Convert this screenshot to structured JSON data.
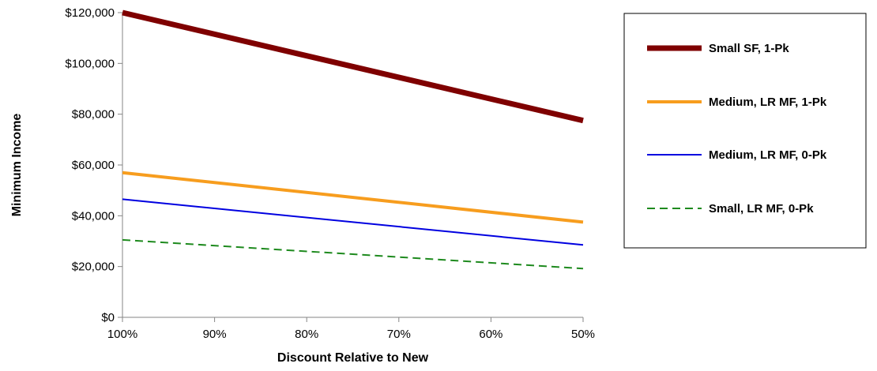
{
  "chart_data": {
    "type": "line",
    "x": [
      "100%",
      "50%"
    ],
    "x_tick_labels": [
      "100%",
      "90%",
      "80%",
      "70%",
      "60%",
      "50%"
    ],
    "xlabel": "Discount Relative to New",
    "ylabel": "Minimum Income",
    "ylim": [
      0,
      120000
    ],
    "y_tick_labels": [
      "$0",
      "$20,000",
      "$40,000",
      "$60,000",
      "$80,000",
      "$100,000",
      "$120,000"
    ],
    "y_ticks": [
      0,
      20000,
      40000,
      60000,
      80000,
      100000,
      120000
    ],
    "x_range": [
      100,
      50
    ],
    "grid": false,
    "legend_position": "right",
    "series": [
      {
        "name": "Small SF, 1-Pk",
        "x": [
          100,
          50
        ],
        "values": [
          120000,
          77500
        ],
        "color": "#7f0000",
        "style": "solid",
        "weight": "thick"
      },
      {
        "name": "Medium, LR MF, 1-Pk",
        "x": [
          100,
          50
        ],
        "values": [
          57000,
          37500
        ],
        "color": "#f79d1e",
        "style": "solid",
        "weight": "medium"
      },
      {
        "name": "Medium, LR MF, 0-Pk",
        "x": [
          100,
          50
        ],
        "values": [
          46500,
          28500
        ],
        "color": "#0000e0",
        "style": "solid",
        "weight": "thin"
      },
      {
        "name": "Small, LR MF, 0-Pk",
        "x": [
          100,
          50
        ],
        "values": [
          30500,
          19200
        ],
        "color": "#1e8a1e",
        "style": "dashed",
        "weight": "thin"
      }
    ]
  }
}
